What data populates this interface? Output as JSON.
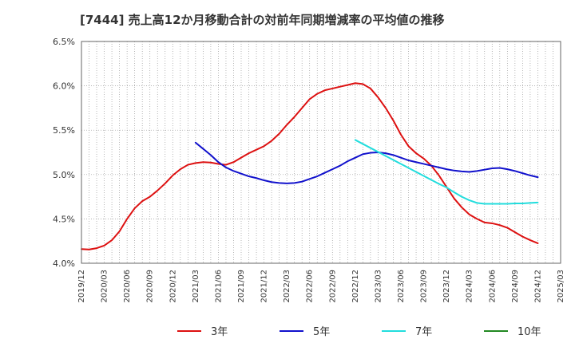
{
  "chart_data": {
    "type": "line",
    "title": "[7444]  売上高12か月移動合計の対前年同期増減率の平均値の推移",
    "xlabel": "",
    "ylabel": "",
    "ylim": [
      4.0,
      6.5
    ],
    "yticks": [
      4.0,
      4.5,
      5.0,
      5.5,
      6.0,
      6.5
    ],
    "ytick_labels": [
      "4.0%",
      "4.5%",
      "5.0%",
      "5.5%",
      "6.0%",
      "6.5%"
    ],
    "xticks": [
      "2019/12",
      "2020/03",
      "2020/06",
      "2020/09",
      "2020/12",
      "2021/03",
      "2021/06",
      "2021/09",
      "2021/12",
      "2022/03",
      "2022/06",
      "2022/09",
      "2022/12",
      "2023/03",
      "2023/06",
      "2023/09",
      "2023/12",
      "2024/03",
      "2024/06",
      "2024/09",
      "2024/12",
      "2025/03"
    ],
    "grid": true,
    "legend_position": "bottom",
    "series": [
      {
        "name": "3年",
        "color": "#dd1111",
        "points": [
          [
            "2019/12",
            4.16
          ],
          [
            "2020/01",
            4.155
          ],
          [
            "2020/02",
            4.17
          ],
          [
            "2020/03",
            4.2
          ],
          [
            "2020/04",
            4.26
          ],
          [
            "2020/05",
            4.36
          ],
          [
            "2020/06",
            4.5
          ],
          [
            "2020/07",
            4.62
          ],
          [
            "2020/08",
            4.7
          ],
          [
            "2020/09",
            4.75
          ],
          [
            "2020/10",
            4.82
          ],
          [
            "2020/11",
            4.9
          ],
          [
            "2020/12",
            4.99
          ],
          [
            "2021/01",
            5.06
          ],
          [
            "2021/02",
            5.11
          ],
          [
            "2021/03",
            5.13
          ],
          [
            "2021/04",
            5.14
          ],
          [
            "2021/05",
            5.135
          ],
          [
            "2021/06",
            5.12
          ],
          [
            "2021/07",
            5.11
          ],
          [
            "2021/08",
            5.14
          ],
          [
            "2021/09",
            5.19
          ],
          [
            "2021/10",
            5.24
          ],
          [
            "2021/11",
            5.28
          ],
          [
            "2021/12",
            5.32
          ],
          [
            "2022/01",
            5.38
          ],
          [
            "2022/02",
            5.46
          ],
          [
            "2022/03",
            5.56
          ],
          [
            "2022/04",
            5.65
          ],
          [
            "2022/05",
            5.75
          ],
          [
            "2022/06",
            5.85
          ],
          [
            "2022/07",
            5.91
          ],
          [
            "2022/08",
            5.95
          ],
          [
            "2022/09",
            5.97
          ],
          [
            "2022/10",
            5.99
          ],
          [
            "2022/11",
            6.01
          ],
          [
            "2022/12",
            6.03
          ],
          [
            "2023/01",
            6.02
          ],
          [
            "2023/02",
            5.97
          ],
          [
            "2023/03",
            5.87
          ],
          [
            "2023/04",
            5.75
          ],
          [
            "2023/05",
            5.61
          ],
          [
            "2023/06",
            5.45
          ],
          [
            "2023/07",
            5.32
          ],
          [
            "2023/08",
            5.24
          ],
          [
            "2023/09",
            5.18
          ],
          [
            "2023/10",
            5.1
          ],
          [
            "2023/11",
            4.99
          ],
          [
            "2023/12",
            4.86
          ],
          [
            "2024/01",
            4.73
          ],
          [
            "2024/02",
            4.63
          ],
          [
            "2024/03",
            4.55
          ],
          [
            "2024/04",
            4.5
          ],
          [
            "2024/05",
            4.46
          ],
          [
            "2024/06",
            4.45
          ],
          [
            "2024/07",
            4.43
          ],
          [
            "2024/08",
            4.4
          ],
          [
            "2024/09",
            4.35
          ],
          [
            "2024/10",
            4.3
          ],
          [
            "2024/11",
            4.26
          ],
          [
            "2024/12",
            4.225
          ]
        ]
      },
      {
        "name": "5年",
        "color": "#1111cc",
        "points": [
          [
            "2021/03",
            5.36
          ],
          [
            "2021/04",
            5.29
          ],
          [
            "2021/05",
            5.22
          ],
          [
            "2021/06",
            5.14
          ],
          [
            "2021/07",
            5.08
          ],
          [
            "2021/08",
            5.04
          ],
          [
            "2021/09",
            5.01
          ],
          [
            "2021/10",
            4.98
          ],
          [
            "2021/11",
            4.96
          ],
          [
            "2021/12",
            4.935
          ],
          [
            "2022/01",
            4.915
          ],
          [
            "2022/02",
            4.905
          ],
          [
            "2022/03",
            4.9
          ],
          [
            "2022/04",
            4.905
          ],
          [
            "2022/05",
            4.92
          ],
          [
            "2022/06",
            4.95
          ],
          [
            "2022/07",
            4.98
          ],
          [
            "2022/08",
            5.02
          ],
          [
            "2022/09",
            5.06
          ],
          [
            "2022/10",
            5.1
          ],
          [
            "2022/11",
            5.15
          ],
          [
            "2022/12",
            5.19
          ],
          [
            "2023/01",
            5.23
          ],
          [
            "2023/02",
            5.245
          ],
          [
            "2023/03",
            5.25
          ],
          [
            "2023/04",
            5.24
          ],
          [
            "2023/05",
            5.22
          ],
          [
            "2023/06",
            5.19
          ],
          [
            "2023/07",
            5.16
          ],
          [
            "2023/08",
            5.14
          ],
          [
            "2023/09",
            5.12
          ],
          [
            "2023/10",
            5.1
          ],
          [
            "2023/11",
            5.08
          ],
          [
            "2023/12",
            5.06
          ],
          [
            "2024/01",
            5.045
          ],
          [
            "2024/02",
            5.035
          ],
          [
            "2024/03",
            5.03
          ],
          [
            "2024/04",
            5.04
          ],
          [
            "2024/05",
            5.055
          ],
          [
            "2024/06",
            5.07
          ],
          [
            "2024/07",
            5.075
          ],
          [
            "2024/08",
            5.06
          ],
          [
            "2024/09",
            5.04
          ],
          [
            "2024/10",
            5.015
          ],
          [
            "2024/11",
            4.99
          ],
          [
            "2024/12",
            4.97
          ]
        ]
      },
      {
        "name": "7年",
        "color": "#22dddd",
        "points": [
          [
            "2022/12",
            5.39
          ],
          [
            "2023/01",
            5.345
          ],
          [
            "2023/02",
            5.3
          ],
          [
            "2023/03",
            5.255
          ],
          [
            "2023/04",
            5.21
          ],
          [
            "2023/05",
            5.165
          ],
          [
            "2023/06",
            5.12
          ],
          [
            "2023/07",
            5.075
          ],
          [
            "2023/08",
            5.03
          ],
          [
            "2023/09",
            4.985
          ],
          [
            "2023/10",
            4.94
          ],
          [
            "2023/11",
            4.895
          ],
          [
            "2023/12",
            4.855
          ],
          [
            "2024/01",
            4.8
          ],
          [
            "2024/02",
            4.75
          ],
          [
            "2024/03",
            4.71
          ],
          [
            "2024/04",
            4.68
          ],
          [
            "2024/05",
            4.67
          ],
          [
            "2024/06",
            4.67
          ],
          [
            "2024/07",
            4.67
          ],
          [
            "2024/08",
            4.67
          ],
          [
            "2024/09",
            4.675
          ],
          [
            "2024/10",
            4.675
          ],
          [
            "2024/11",
            4.68
          ],
          [
            "2024/12",
            4.685
          ]
        ]
      },
      {
        "name": "10年",
        "color": "#228822",
        "points": []
      }
    ]
  }
}
